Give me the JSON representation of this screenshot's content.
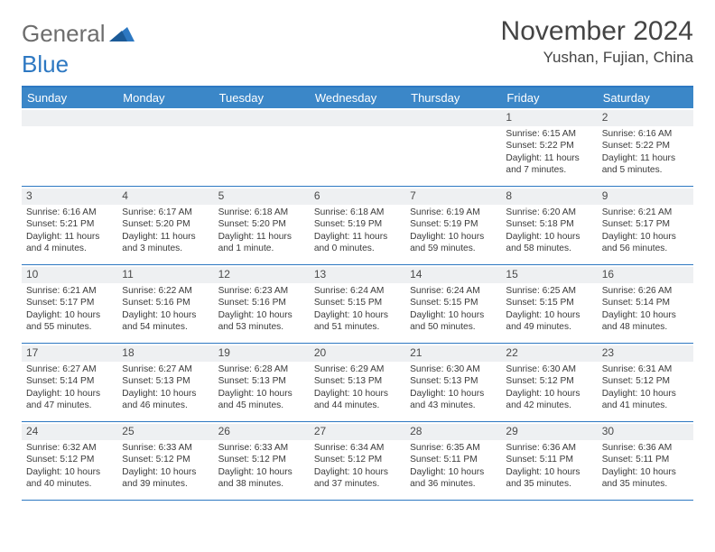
{
  "brand": {
    "word1": "General",
    "word2": "Blue"
  },
  "title": "November 2024",
  "location": "Yushan, Fujian, China",
  "accent_color": "#3b87c8",
  "border_color": "#2d78c2",
  "shade_color": "#eef0f2",
  "text_color": "#3a3a3a",
  "weekdays": [
    "Sunday",
    "Monday",
    "Tuesday",
    "Wednesday",
    "Thursday",
    "Friday",
    "Saturday"
  ],
  "weeks": [
    [
      null,
      null,
      null,
      null,
      null,
      {
        "n": "1",
        "r": "Sunrise: 6:15 AM",
        "s": "Sunset: 5:22 PM",
        "d1": "Daylight: 11 hours",
        "d2": "and 7 minutes."
      },
      {
        "n": "2",
        "r": "Sunrise: 6:16 AM",
        "s": "Sunset: 5:22 PM",
        "d1": "Daylight: 11 hours",
        "d2": "and 5 minutes."
      }
    ],
    [
      {
        "n": "3",
        "r": "Sunrise: 6:16 AM",
        "s": "Sunset: 5:21 PM",
        "d1": "Daylight: 11 hours",
        "d2": "and 4 minutes."
      },
      {
        "n": "4",
        "r": "Sunrise: 6:17 AM",
        "s": "Sunset: 5:20 PM",
        "d1": "Daylight: 11 hours",
        "d2": "and 3 minutes."
      },
      {
        "n": "5",
        "r": "Sunrise: 6:18 AM",
        "s": "Sunset: 5:20 PM",
        "d1": "Daylight: 11 hours",
        "d2": "and 1 minute."
      },
      {
        "n": "6",
        "r": "Sunrise: 6:18 AM",
        "s": "Sunset: 5:19 PM",
        "d1": "Daylight: 11 hours",
        "d2": "and 0 minutes."
      },
      {
        "n": "7",
        "r": "Sunrise: 6:19 AM",
        "s": "Sunset: 5:19 PM",
        "d1": "Daylight: 10 hours",
        "d2": "and 59 minutes."
      },
      {
        "n": "8",
        "r": "Sunrise: 6:20 AM",
        "s": "Sunset: 5:18 PM",
        "d1": "Daylight: 10 hours",
        "d2": "and 58 minutes."
      },
      {
        "n": "9",
        "r": "Sunrise: 6:21 AM",
        "s": "Sunset: 5:17 PM",
        "d1": "Daylight: 10 hours",
        "d2": "and 56 minutes."
      }
    ],
    [
      {
        "n": "10",
        "r": "Sunrise: 6:21 AM",
        "s": "Sunset: 5:17 PM",
        "d1": "Daylight: 10 hours",
        "d2": "and 55 minutes."
      },
      {
        "n": "11",
        "r": "Sunrise: 6:22 AM",
        "s": "Sunset: 5:16 PM",
        "d1": "Daylight: 10 hours",
        "d2": "and 54 minutes."
      },
      {
        "n": "12",
        "r": "Sunrise: 6:23 AM",
        "s": "Sunset: 5:16 PM",
        "d1": "Daylight: 10 hours",
        "d2": "and 53 minutes."
      },
      {
        "n": "13",
        "r": "Sunrise: 6:24 AM",
        "s": "Sunset: 5:15 PM",
        "d1": "Daylight: 10 hours",
        "d2": "and 51 minutes."
      },
      {
        "n": "14",
        "r": "Sunrise: 6:24 AM",
        "s": "Sunset: 5:15 PM",
        "d1": "Daylight: 10 hours",
        "d2": "and 50 minutes."
      },
      {
        "n": "15",
        "r": "Sunrise: 6:25 AM",
        "s": "Sunset: 5:15 PM",
        "d1": "Daylight: 10 hours",
        "d2": "and 49 minutes."
      },
      {
        "n": "16",
        "r": "Sunrise: 6:26 AM",
        "s": "Sunset: 5:14 PM",
        "d1": "Daylight: 10 hours",
        "d2": "and 48 minutes."
      }
    ],
    [
      {
        "n": "17",
        "r": "Sunrise: 6:27 AM",
        "s": "Sunset: 5:14 PM",
        "d1": "Daylight: 10 hours",
        "d2": "and 47 minutes."
      },
      {
        "n": "18",
        "r": "Sunrise: 6:27 AM",
        "s": "Sunset: 5:13 PM",
        "d1": "Daylight: 10 hours",
        "d2": "and 46 minutes."
      },
      {
        "n": "19",
        "r": "Sunrise: 6:28 AM",
        "s": "Sunset: 5:13 PM",
        "d1": "Daylight: 10 hours",
        "d2": "and 45 minutes."
      },
      {
        "n": "20",
        "r": "Sunrise: 6:29 AM",
        "s": "Sunset: 5:13 PM",
        "d1": "Daylight: 10 hours",
        "d2": "and 44 minutes."
      },
      {
        "n": "21",
        "r": "Sunrise: 6:30 AM",
        "s": "Sunset: 5:13 PM",
        "d1": "Daylight: 10 hours",
        "d2": "and 43 minutes."
      },
      {
        "n": "22",
        "r": "Sunrise: 6:30 AM",
        "s": "Sunset: 5:12 PM",
        "d1": "Daylight: 10 hours",
        "d2": "and 42 minutes."
      },
      {
        "n": "23",
        "r": "Sunrise: 6:31 AM",
        "s": "Sunset: 5:12 PM",
        "d1": "Daylight: 10 hours",
        "d2": "and 41 minutes."
      }
    ],
    [
      {
        "n": "24",
        "r": "Sunrise: 6:32 AM",
        "s": "Sunset: 5:12 PM",
        "d1": "Daylight: 10 hours",
        "d2": "and 40 minutes."
      },
      {
        "n": "25",
        "r": "Sunrise: 6:33 AM",
        "s": "Sunset: 5:12 PM",
        "d1": "Daylight: 10 hours",
        "d2": "and 39 minutes."
      },
      {
        "n": "26",
        "r": "Sunrise: 6:33 AM",
        "s": "Sunset: 5:12 PM",
        "d1": "Daylight: 10 hours",
        "d2": "and 38 minutes."
      },
      {
        "n": "27",
        "r": "Sunrise: 6:34 AM",
        "s": "Sunset: 5:12 PM",
        "d1": "Daylight: 10 hours",
        "d2": "and 37 minutes."
      },
      {
        "n": "28",
        "r": "Sunrise: 6:35 AM",
        "s": "Sunset: 5:11 PM",
        "d1": "Daylight: 10 hours",
        "d2": "and 36 minutes."
      },
      {
        "n": "29",
        "r": "Sunrise: 6:36 AM",
        "s": "Sunset: 5:11 PM",
        "d1": "Daylight: 10 hours",
        "d2": "and 35 minutes."
      },
      {
        "n": "30",
        "r": "Sunrise: 6:36 AM",
        "s": "Sunset: 5:11 PM",
        "d1": "Daylight: 10 hours",
        "d2": "and 35 minutes."
      }
    ]
  ]
}
